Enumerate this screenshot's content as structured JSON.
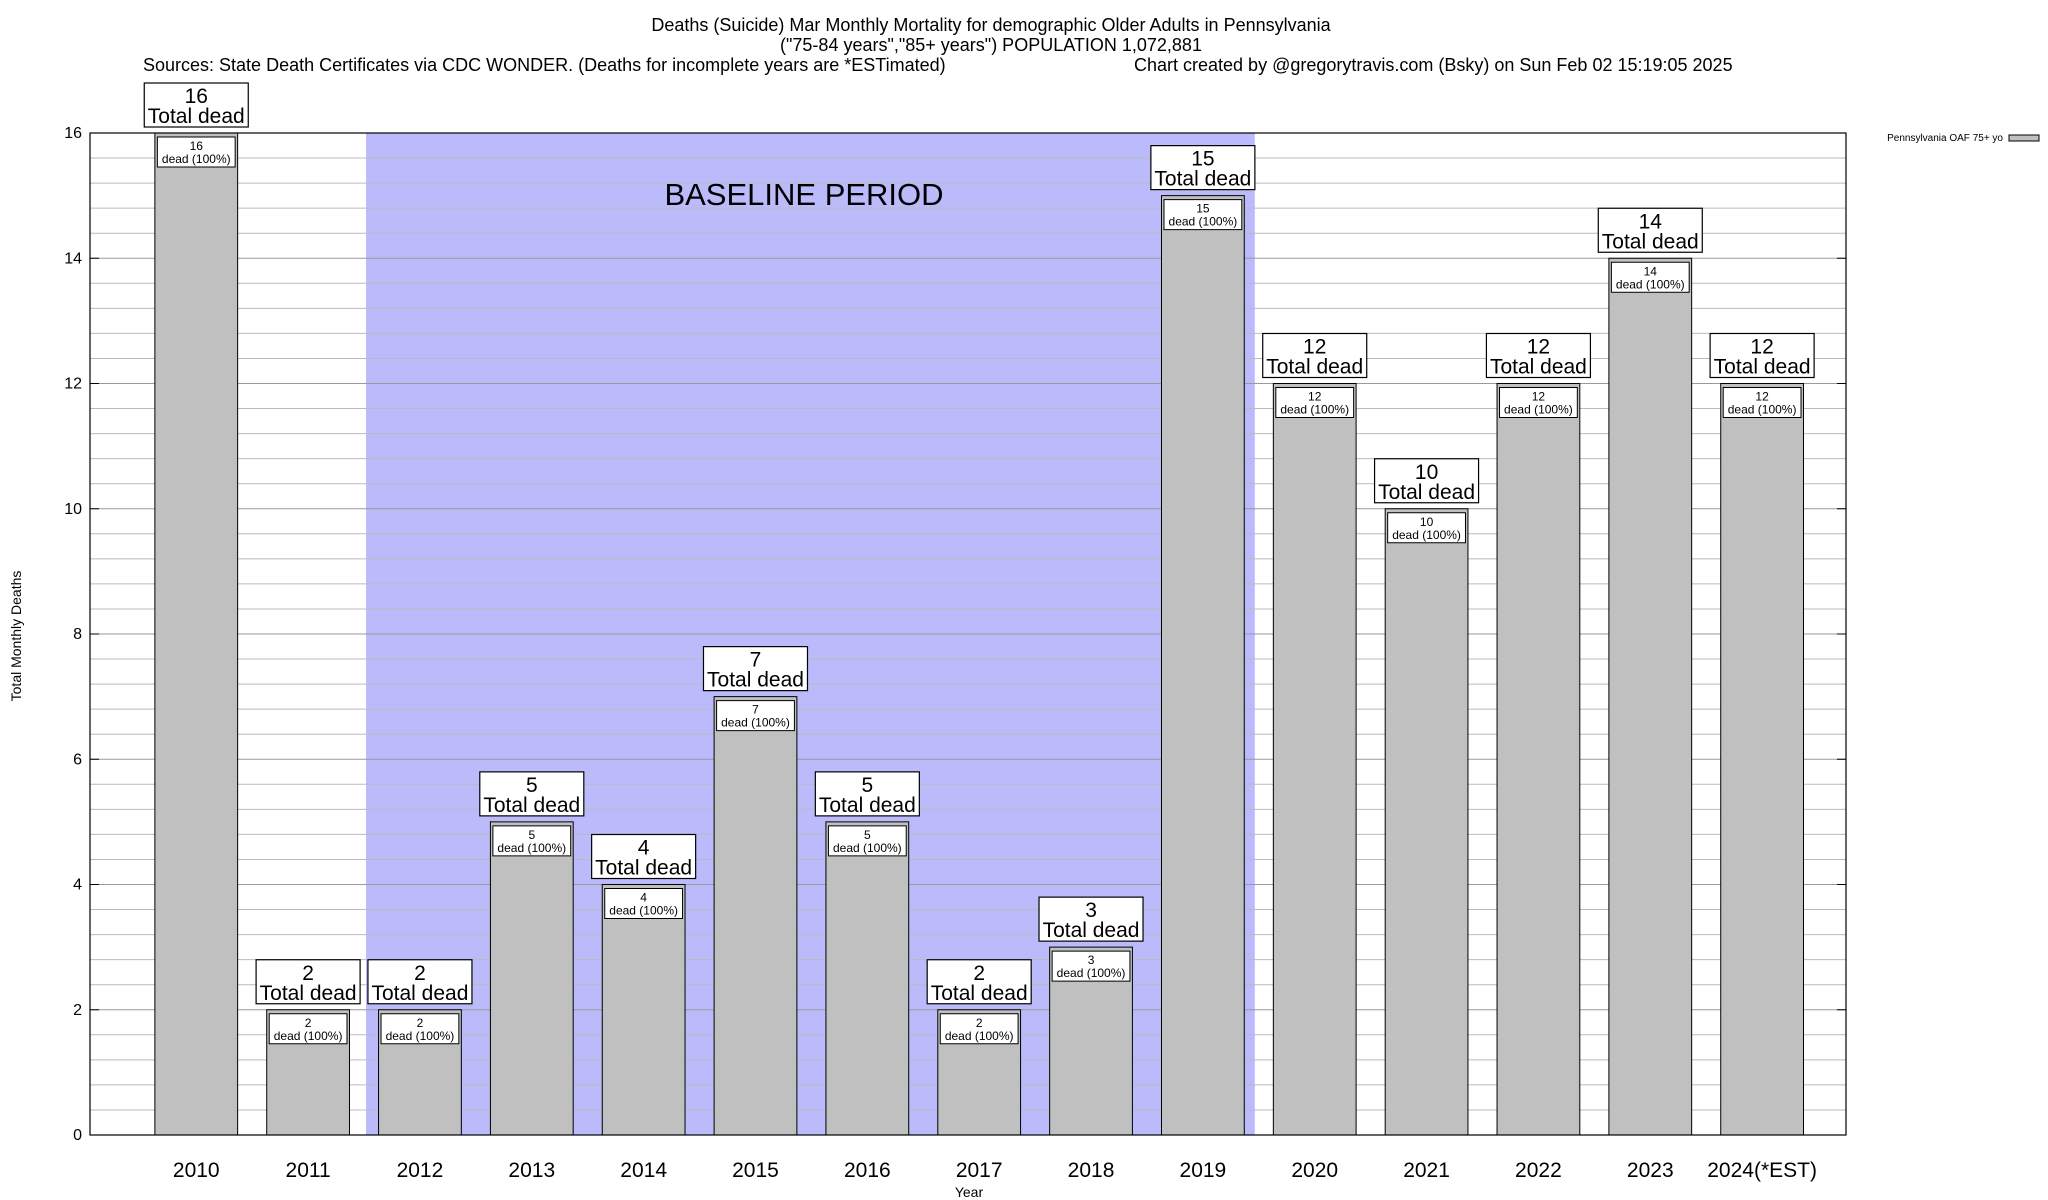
{
  "chart_data": {
    "type": "bar",
    "title": "Deaths (Suicide) Mar Monthly Mortality for demographic Older Adults in Pennsylvania",
    "subtitle": "(\"75-84 years\",\"85+ years\") POPULATION 1,072,881",
    "sources": "Sources: State Death Certificates via CDC WONDER. (Deaths for incomplete years are *ESTimated)",
    "credit": "Chart created by @gregorytravis.com (Bsky) on Sun Feb 02 15:19:05 2025",
    "xlabel": "Year",
    "ylabel": "Total Monthly Deaths",
    "ylim": [
      0,
      16
    ],
    "yticks": [
      0,
      2,
      4,
      6,
      8,
      10,
      12,
      14,
      16
    ],
    "grid": true,
    "legend_placement": "top-right",
    "categories": [
      "2010",
      "2011",
      "2012",
      "2013",
      "2014",
      "2015",
      "2016",
      "2017",
      "2018",
      "2019",
      "2020",
      "2021",
      "2022",
      "2023",
      "2024(*EST)"
    ],
    "series": [
      {
        "name": "Pennsylvania OAF 75+ yo",
        "values": [
          16,
          2,
          2,
          5,
          4,
          7,
          5,
          2,
          3,
          15,
          12,
          10,
          12,
          14,
          12
        ],
        "color": "#c0c0c0"
      }
    ],
    "total_label_text": "Total dead",
    "inner_label_text": "dead (100%)",
    "baseline": {
      "label": "BASELINE PERIOD",
      "start": "2012",
      "end": "2019",
      "color": "#bbbbfb"
    }
  }
}
